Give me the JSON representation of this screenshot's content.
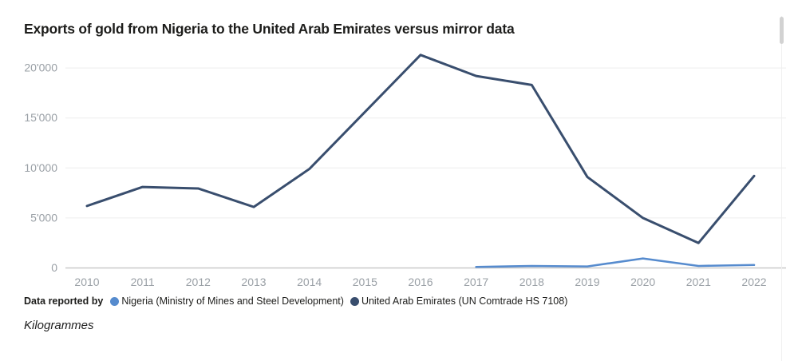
{
  "header": {
    "title": "Exports of gold from Nigeria to the United Arab Emirates versus mirror data"
  },
  "legend": {
    "title": "Data reported by"
  },
  "footer": {
    "unit_label": "Kilogrammes"
  },
  "colors": {
    "nigeria_line": "#568bce",
    "uae_line": "#394e6e",
    "gridline": "#ededed",
    "zero_axis": "#c9c9c9",
    "tick_text": "#9aa0a6",
    "title_text": "#1d1d1b",
    "scrollbar_thumb": "#d2d2d2"
  },
  "chart_data": {
    "type": "line",
    "title": "Exports of gold from Nigeria to the United Arab Emirates versus mirror data",
    "xlabel": "",
    "ylabel": "Kilogrammes",
    "categories": [
      "2010",
      "2011",
      "2012",
      "2013",
      "2014",
      "2015",
      "2016",
      "2017",
      "2018",
      "2019",
      "2020",
      "2021",
      "2022"
    ],
    "series": [
      {
        "name": "Nigeria (Ministry of Mines and Steel Development)",
        "color": "#568bce",
        "values": [
          null,
          null,
          null,
          null,
          null,
          null,
          null,
          100,
          200,
          150,
          950,
          200,
          300
        ]
      },
      {
        "name": "United Arab Emirates (UN Comtrade HS 7108)",
        "color": "#394e6e",
        "values": [
          6200,
          8100,
          7950,
          6100,
          9900,
          15600,
          21300,
          19200,
          18300,
          9100,
          5000,
          2500,
          9200
        ]
      }
    ],
    "ylim": [
      0,
      22400
    ],
    "y_ticks": [
      0,
      5000,
      10000,
      15000,
      20000
    ],
    "y_tick_labels": [
      "0",
      "5'000",
      "10'000",
      "15'000",
      "20'000"
    ],
    "grid": true,
    "legend_position": "bottom"
  }
}
